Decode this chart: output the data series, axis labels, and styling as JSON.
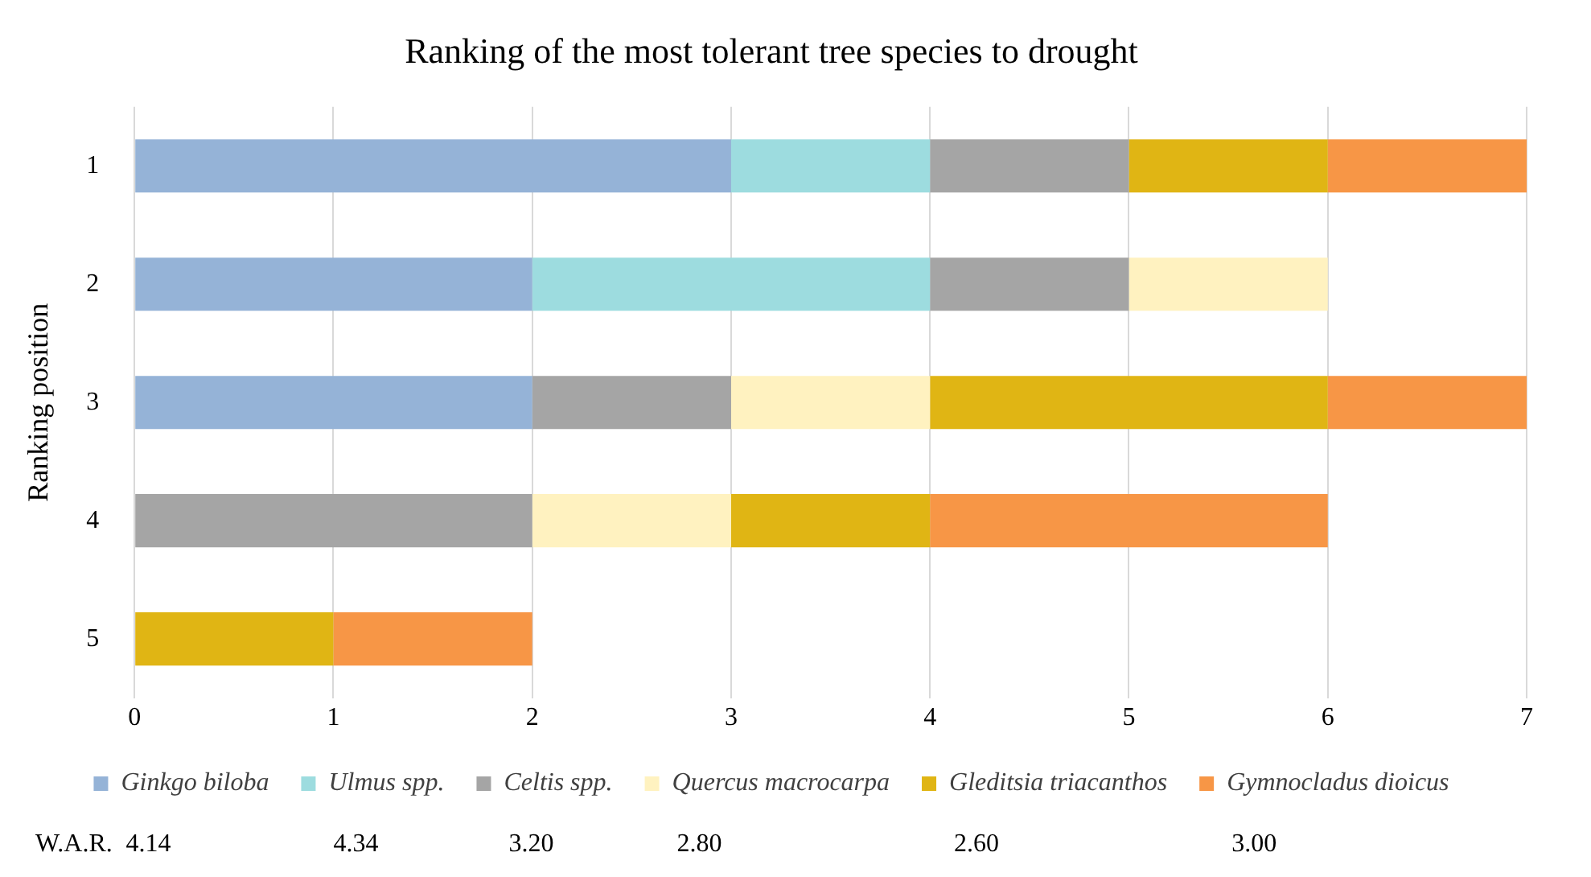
{
  "chart_data": {
    "type": "bar",
    "orientation": "horizontal",
    "stacked": true,
    "title": "Ranking of the most tolerant tree species to drought",
    "ylabel": "Ranking position",
    "categories": [
      "1",
      "2",
      "3",
      "4",
      "5"
    ],
    "series": [
      {
        "name": "Ginkgo biloba",
        "color": "#95b3d7",
        "values": [
          3,
          2,
          2,
          0,
          0
        ]
      },
      {
        "name": "Ulmus spp.",
        "color": "#9ddcdf",
        "values": [
          1,
          2,
          0,
          0,
          0
        ]
      },
      {
        "name": "Celtis spp.",
        "color": "#a5a5a5",
        "values": [
          1,
          1,
          1,
          2,
          0
        ]
      },
      {
        "name": "Quercus macrocarpa",
        "color": "#fff2c0",
        "values": [
          0,
          1,
          1,
          1,
          0
        ]
      },
      {
        "name": "Gleditsia triacanthos",
        "color": "#e0b514",
        "values": [
          1,
          0,
          2,
          1,
          1
        ]
      },
      {
        "name": "Gymnocladus dioicus",
        "color": "#f79646",
        "values": [
          1,
          0,
          1,
          2,
          1
        ]
      }
    ],
    "xlim": [
      0,
      7
    ],
    "xticks": [
      0,
      1,
      2,
      3,
      4,
      5,
      6,
      7
    ],
    "grid": "x",
    "legend": "bottom",
    "annotations": [
      "W.A.R.",
      "4.14",
      "4.34",
      "3.20",
      "2.80",
      "2.60",
      "3.00"
    ]
  }
}
